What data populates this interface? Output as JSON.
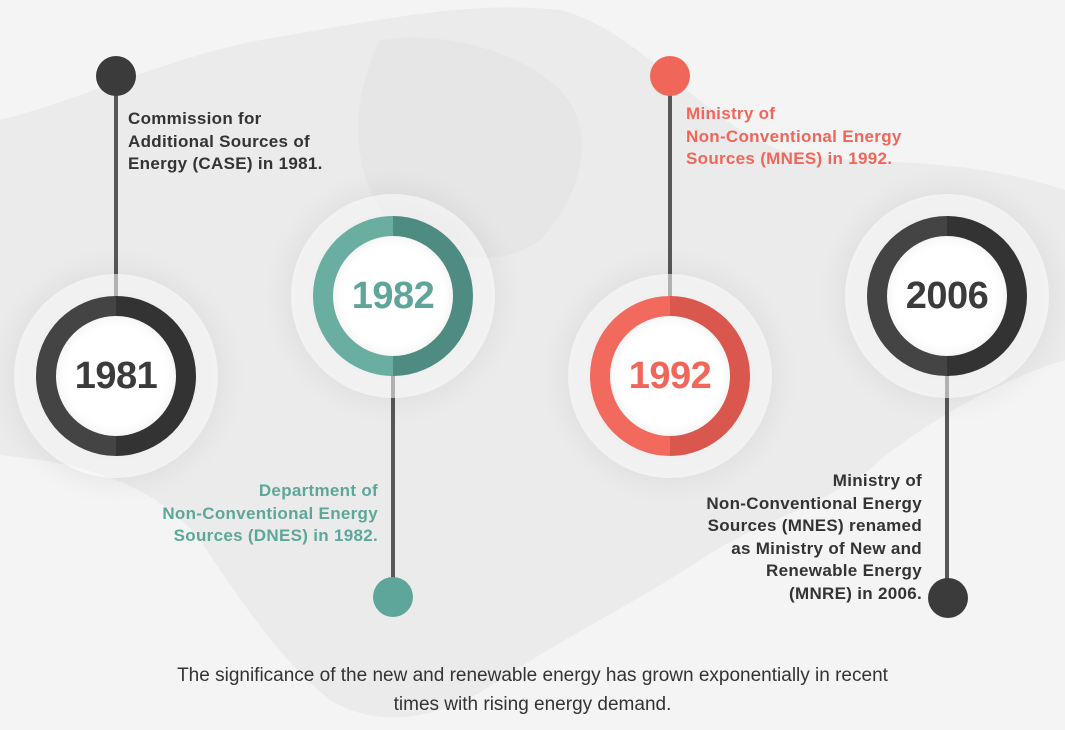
{
  "milestones": [
    {
      "year": "1981",
      "color": "#3b3b3b",
      "description": [
        "Commission for",
        "Additional Sources of",
        "Energy (CASE) in 1981."
      ]
    },
    {
      "year": "1982",
      "color": "#5ea69a",
      "description": [
        "Department of",
        "Non-Conventional Energy",
        "Sources (DNES) in 1982."
      ]
    },
    {
      "year": "1992",
      "color": "#f0675a",
      "description": [
        "Ministry of",
        "Non-Conventional Energy",
        "Sources (MNES) in 1992."
      ]
    },
    {
      "year": "2006",
      "color": "#3b3b3b",
      "description": [
        "Ministry of",
        "Non-Conventional Energy",
        "Sources (MNES) renamed",
        "as Ministry of New and",
        "Renewable Energy",
        "(MNRE) in 2006."
      ]
    }
  ],
  "caption": [
    "The significance of the new and renewable energy has grown exponentially in recent",
    "times with rising energy demand."
  ]
}
